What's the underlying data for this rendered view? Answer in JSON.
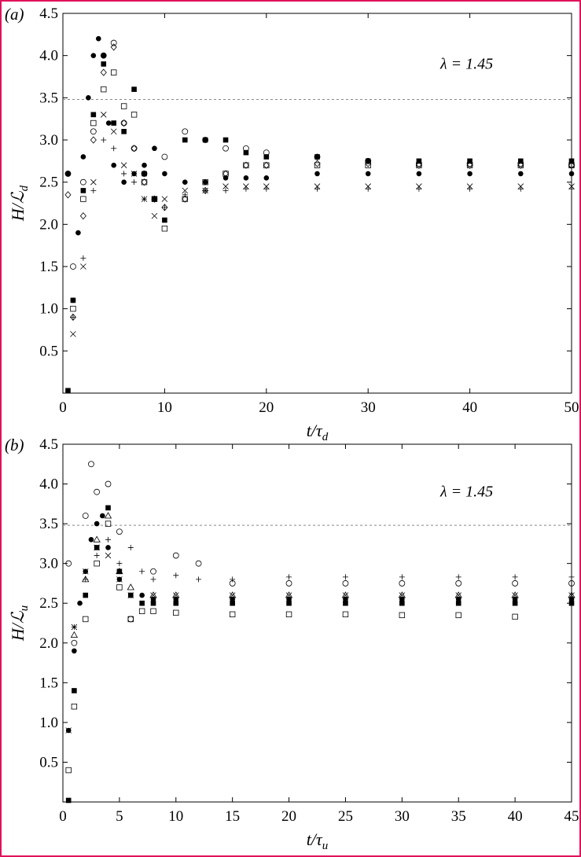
{
  "chart_data": [
    {
      "panel_label": "(a)",
      "type": "scatter",
      "title": "",
      "xlabel": "t/τ_d",
      "ylabel": "H/L_d",
      "annotation": "λ = 1.45",
      "reference_line": {
        "y": 3.48,
        "style": "dashed"
      },
      "xlim": [
        0,
        50
      ],
      "ylim": [
        0,
        4.5
      ],
      "xticks": [
        "0",
        "10",
        "20",
        "30",
        "40",
        "50"
      ],
      "yticks": [
        "0.5",
        "1.0",
        "1.5",
        "2.0",
        "2.5",
        "3.0",
        "3.5",
        "4.0",
        "4.5"
      ],
      "grid": false,
      "series": [
        {
          "name": "filled-circle",
          "marker": "●",
          "x": [
            0.5,
            1,
            1.5,
            2,
            2.5,
            3,
            3.5,
            4,
            4.5,
            5,
            6,
            7,
            8,
            9,
            10,
            12,
            14,
            16,
            18,
            20,
            25,
            30,
            35,
            40,
            45,
            50
          ],
          "y": [
            2.6,
            1.1,
            1.9,
            2.8,
            3.5,
            4.0,
            4.2,
            4.0,
            3.2,
            2.7,
            2.5,
            2.6,
            2.7,
            2.9,
            2.6,
            2.5,
            2.5,
            2.55,
            2.55,
            2.55,
            2.6,
            2.6,
            2.6,
            2.6,
            2.6,
            2.6
          ]
        },
        {
          "name": "filled-square",
          "marker": "■",
          "x": [
            0.5,
            1,
            2,
            3,
            4,
            5,
            6,
            7,
            8,
            9,
            10,
            12,
            14,
            16,
            18,
            20,
            25,
            30,
            35,
            40,
            45,
            50
          ],
          "y": [
            0.03,
            1.1,
            2.4,
            3.3,
            3.9,
            3.2,
            3.1,
            3.6,
            2.6,
            2.3,
            2.05,
            3.0,
            3.0,
            3.0,
            2.85,
            2.8,
            2.8,
            2.75,
            2.75,
            2.75,
            2.75,
            2.75
          ]
        },
        {
          "name": "open-circle",
          "marker": "○",
          "x": [
            0.5,
            1,
            2,
            3,
            4,
            5,
            6,
            7,
            8,
            10,
            12,
            14,
            16,
            18,
            20,
            25,
            30,
            35,
            40,
            45,
            50
          ],
          "y": [
            2.6,
            1.5,
            2.5,
            3.1,
            4.0,
            4.15,
            3.2,
            2.9,
            2.6,
            2.8,
            3.1,
            3.0,
            2.9,
            2.9,
            2.85,
            2.8,
            2.75,
            2.72,
            2.72,
            2.72,
            2.7
          ]
        },
        {
          "name": "open-square",
          "marker": "□",
          "x": [
            1,
            2,
            3,
            4,
            5,
            6,
            7,
            8,
            9,
            10,
            12,
            14,
            16,
            18,
            20,
            25,
            30,
            35,
            40,
            45,
            50
          ],
          "y": [
            1.0,
            2.3,
            3.2,
            3.6,
            3.8,
            3.4,
            3.3,
            2.5,
            2.3,
            1.95,
            2.3,
            2.5,
            2.6,
            2.7,
            2.7,
            2.7,
            2.7,
            2.7,
            2.7,
            2.7,
            2.7
          ]
        },
        {
          "name": "diamond",
          "marker": "◇",
          "x": [
            0.5,
            1,
            2,
            3,
            4,
            5,
            6,
            7,
            8,
            9,
            10,
            12,
            14,
            16,
            18,
            20,
            25,
            30,
            35,
            40,
            45,
            50
          ],
          "y": [
            2.35,
            0.9,
            2.1,
            3.0,
            3.8,
            4.1,
            3.2,
            2.9,
            2.5,
            2.3,
            2.2,
            2.3,
            2.4,
            2.6,
            2.7,
            2.7,
            2.72,
            2.72,
            2.7,
            2.7,
            2.7,
            2.7
          ]
        },
        {
          "name": "cross",
          "marker": "×",
          "x": [
            1,
            2,
            3,
            4,
            5,
            6,
            7,
            8,
            9,
            10,
            12,
            14,
            16,
            18,
            20,
            25,
            30,
            35,
            40,
            45,
            50
          ],
          "y": [
            0.7,
            1.5,
            2.5,
            3.3,
            3.1,
            2.7,
            2.6,
            2.3,
            2.1,
            2.3,
            2.4,
            2.4,
            2.45,
            2.45,
            2.45,
            2.45,
            2.45,
            2.45,
            2.45,
            2.45,
            2.45
          ]
        },
        {
          "name": "plus",
          "marker": "+",
          "x": [
            1,
            2,
            3,
            4,
            5,
            6,
            7,
            8,
            10,
            12,
            14,
            16,
            18,
            20,
            25,
            30,
            35,
            40,
            45,
            50
          ],
          "y": [
            0.9,
            1.6,
            2.4,
            3.0,
            2.9,
            2.6,
            2.5,
            2.3,
            2.2,
            2.35,
            2.4,
            2.4,
            2.42,
            2.42,
            2.42,
            2.42,
            2.42,
            2.42,
            2.42,
            2.42
          ]
        }
      ]
    },
    {
      "panel_label": "(b)",
      "type": "scatter",
      "title": "",
      "xlabel": "t/τ_u",
      "ylabel": "H/L_u",
      "annotation": "λ = 1.45",
      "reference_line": {
        "y": 3.48,
        "style": "dashed"
      },
      "xlim": [
        0,
        45
      ],
      "ylim": [
        0,
        4.5
      ],
      "xticks": [
        "0",
        "5",
        "10",
        "15",
        "20",
        "25",
        "30",
        "35",
        "40",
        "45"
      ],
      "yticks": [
        "0.5",
        "1.0",
        "1.5",
        "2.0",
        "2.5",
        "3.0",
        "3.5",
        "4.0",
        "4.5"
      ],
      "grid": false,
      "series": [
        {
          "name": "filled-circle",
          "marker": "●",
          "x": [
            0.5,
            1,
            1.5,
            2,
            2.5,
            3,
            3.5,
            4,
            5,
            6,
            7,
            8,
            10,
            15,
            20,
            25,
            30,
            35,
            40,
            45
          ],
          "y": [
            0.9,
            1.9,
            2.5,
            2.9,
            3.3,
            3.5,
            3.6,
            3.2,
            2.8,
            2.6,
            2.6,
            2.55,
            2.55,
            2.55,
            2.55,
            2.55,
            2.55,
            2.55,
            2.55,
            2.55
          ]
        },
        {
          "name": "filled-square",
          "marker": "■",
          "x": [
            0.5,
            1,
            2,
            3,
            4,
            5,
            6,
            7,
            8,
            10,
            15,
            20,
            25,
            30,
            35,
            40,
            45
          ],
          "y": [
            0.02,
            1.4,
            2.6,
            3.2,
            3.7,
            2.9,
            2.6,
            2.5,
            2.5,
            2.5,
            2.5,
            2.5,
            2.5,
            2.5,
            2.5,
            2.5,
            2.5
          ]
        },
        {
          "name": "open-circle",
          "marker": "○",
          "x": [
            0.5,
            1,
            2,
            2.5,
            3,
            4,
            5,
            6,
            8,
            10,
            12,
            15,
            20,
            25,
            30,
            35,
            40,
            45
          ],
          "y": [
            3.0,
            2.0,
            3.6,
            4.25,
            3.9,
            4.0,
            3.4,
            2.3,
            2.9,
            3.1,
            3.0,
            2.75,
            2.75,
            2.75,
            2.75,
            2.75,
            2.75,
            2.75
          ]
        },
        {
          "name": "open-square",
          "marker": "□",
          "x": [
            0.5,
            1,
            2,
            3,
            4,
            5,
            6,
            7,
            8,
            10,
            15,
            20,
            25,
            30,
            35,
            40
          ],
          "y": [
            0.4,
            1.2,
            2.3,
            3.0,
            3.5,
            2.7,
            2.3,
            2.4,
            2.4,
            2.38,
            2.36,
            2.36,
            2.36,
            2.35,
            2.35,
            2.33
          ]
        },
        {
          "name": "triangle",
          "marker": "△",
          "x": [
            1,
            2,
            3,
            4,
            5,
            6,
            8,
            10,
            15,
            20,
            25,
            30,
            35,
            40,
            45
          ],
          "y": [
            2.1,
            2.8,
            3.3,
            3.6,
            2.9,
            2.7,
            2.6,
            2.6,
            2.6,
            2.6,
            2.6,
            2.6,
            2.6,
            2.6,
            2.6
          ]
        },
        {
          "name": "cross",
          "marker": "×",
          "x": [
            0.5,
            1,
            2,
            3,
            4,
            5,
            6,
            8,
            10,
            15,
            20,
            25,
            30,
            35,
            40,
            45
          ],
          "y": [
            0.9,
            2.2,
            2.9,
            3.2,
            3.1,
            2.8,
            2.6,
            2.6,
            2.6,
            2.6,
            2.6,
            2.6,
            2.6,
            2.6,
            2.6,
            2.6
          ]
        },
        {
          "name": "plus",
          "marker": "+",
          "x": [
            1,
            2,
            3,
            4,
            5,
            6,
            7,
            8,
            10,
            12,
            15,
            20,
            25,
            30,
            35,
            40,
            45
          ],
          "y": [
            2.2,
            2.8,
            3.1,
            3.3,
            3.0,
            3.2,
            2.9,
            2.8,
            2.85,
            2.8,
            2.8,
            2.83,
            2.83,
            2.83,
            2.83,
            2.83,
            2.83
          ]
        }
      ]
    }
  ]
}
